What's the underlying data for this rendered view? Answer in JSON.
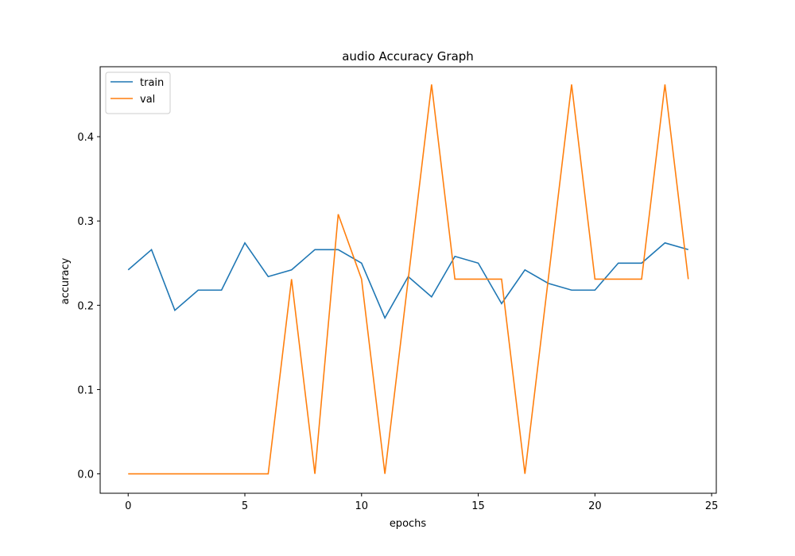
{
  "chart_data": {
    "type": "line",
    "title": "audio Accuracy Graph",
    "xlabel": "epochs",
    "ylabel": "accuracy",
    "xlim": [
      -1.2,
      25.2
    ],
    "ylim": [
      -0.023,
      0.483
    ],
    "xticks": [
      0,
      5,
      10,
      15,
      20,
      25
    ],
    "yticks": [
      0.0,
      0.1,
      0.2,
      0.3,
      0.4
    ],
    "ytick_labels": [
      "0.0",
      "0.1",
      "0.2",
      "0.3",
      "0.4"
    ],
    "legend_position": "upper-left",
    "grid": false,
    "x": [
      0,
      1,
      2,
      3,
      4,
      5,
      6,
      7,
      8,
      9,
      10,
      11,
      12,
      13,
      14,
      15,
      16,
      17,
      18,
      19,
      20,
      21,
      22,
      23,
      24
    ],
    "series": [
      {
        "name": "train",
        "color": "#1f77b4",
        "values": [
          0.242,
          0.266,
          0.194,
          0.218,
          0.218,
          0.274,
          0.234,
          0.242,
          0.266,
          0.266,
          0.25,
          0.185,
          0.234,
          0.21,
          0.258,
          0.25,
          0.202,
          0.242,
          0.226,
          0.218,
          0.218,
          0.25,
          0.25,
          0.274,
          0.266
        ]
      },
      {
        "name": "val",
        "color": "#ff7f0e",
        "values": [
          0.0,
          0.0,
          0.0,
          0.0,
          0.0,
          0.0,
          0.0,
          0.231,
          0.0,
          0.308,
          0.231,
          0.0,
          0.231,
          0.462,
          0.231,
          0.231,
          0.231,
          0.0,
          0.231,
          0.462,
          0.231,
          0.231,
          0.231,
          0.462,
          0.231
        ]
      }
    ]
  }
}
